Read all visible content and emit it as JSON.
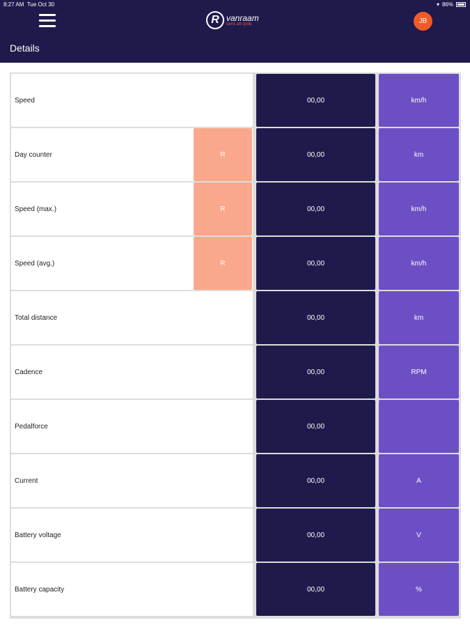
{
  "status_bar": {
    "time": "8:27 AM",
    "date": "Tue Oct 30",
    "battery": "86%"
  },
  "header": {
    "logo_text": "vanraam",
    "logo_tagline": "turns all cycle",
    "avatar_initials": "JB",
    "title": "Details"
  },
  "rows": [
    {
      "label": "Speed",
      "reset": null,
      "value": "00,00",
      "unit": "km/h"
    },
    {
      "label": "Day counter",
      "reset": "R",
      "value": "00,00",
      "unit": "km"
    },
    {
      "label": "Speed (max.)",
      "reset": "R",
      "value": "00,00",
      "unit": "km/h"
    },
    {
      "label": "Speed (avg.)",
      "reset": "R",
      "value": "00,00",
      "unit": "km/h"
    },
    {
      "label": "Total distance",
      "reset": null,
      "value": "00,00",
      "unit": "km"
    },
    {
      "label": "Cadence",
      "reset": null,
      "value": "00,00",
      "unit": "RPM"
    },
    {
      "label": "Pedalforce",
      "reset": null,
      "value": "00,00",
      "unit": ""
    },
    {
      "label": "Current",
      "reset": null,
      "value": "00,00",
      "unit": "A"
    },
    {
      "label": "Battery voltage",
      "reset": null,
      "value": "00,00",
      "unit": "V"
    },
    {
      "label": "Battery capacity",
      "reset": null,
      "value": "00,00",
      "unit": "%"
    }
  ]
}
